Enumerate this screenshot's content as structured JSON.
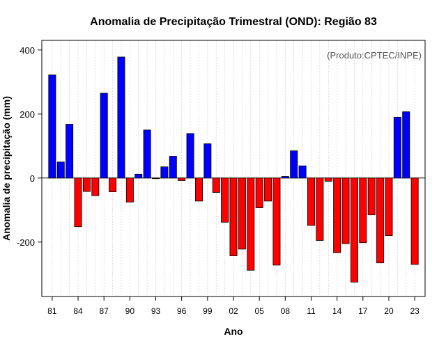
{
  "chart_data": {
    "type": "bar",
    "title": "Anomalia de Precipitação Trimestral (OND): Região 83",
    "xlabel": "Ano",
    "ylabel": "Anomalia de precipitação (mm)",
    "source_note": "(Produto:CPTEC/INPE)",
    "ylim": [
      -370,
      430
    ],
    "xlim": [
      1979.8,
      2024.2
    ],
    "yticks": [
      -200,
      0,
      200,
      400
    ],
    "ytick_labels": [
      "-200",
      "0",
      "200",
      "400"
    ],
    "xticks": [
      1981,
      1984,
      1987,
      1990,
      1993,
      1996,
      1999,
      2002,
      2005,
      2008,
      2011,
      2014,
      2017,
      2020,
      2023
    ],
    "xtick_labels": [
      "81",
      "84",
      "87",
      "90",
      "93",
      "96",
      "99",
      "02",
      "05",
      "08",
      "11",
      "14",
      "17",
      "20",
      "23"
    ],
    "grid": true,
    "positive_color": "#0000ff",
    "negative_color": "#ff0000",
    "years": [
      1981,
      1982,
      1983,
      1984,
      1985,
      1986,
      1987,
      1988,
      1989,
      1990,
      1991,
      1992,
      1993,
      1994,
      1995,
      1996,
      1997,
      1998,
      1999,
      2000,
      2001,
      2002,
      2003,
      2004,
      2005,
      2006,
      2007,
      2008,
      2009,
      2010,
      2011,
      2012,
      2013,
      2014,
      2015,
      2016,
      2017,
      2018,
      2019,
      2020,
      2021,
      2022,
      2023
    ],
    "values": [
      322,
      50,
      168,
      -152,
      -42,
      -55,
      265,
      -43,
      378,
      -75,
      12,
      150,
      -2,
      35,
      68,
      -8,
      139,
      -72,
      107,
      -45,
      -138,
      -243,
      -222,
      -288,
      -93,
      -72,
      -272,
      5,
      85,
      38,
      -148,
      -195,
      -10,
      -233,
      -205,
      -325,
      -202,
      -115,
      -265,
      -180,
      190,
      207,
      -270
    ]
  }
}
